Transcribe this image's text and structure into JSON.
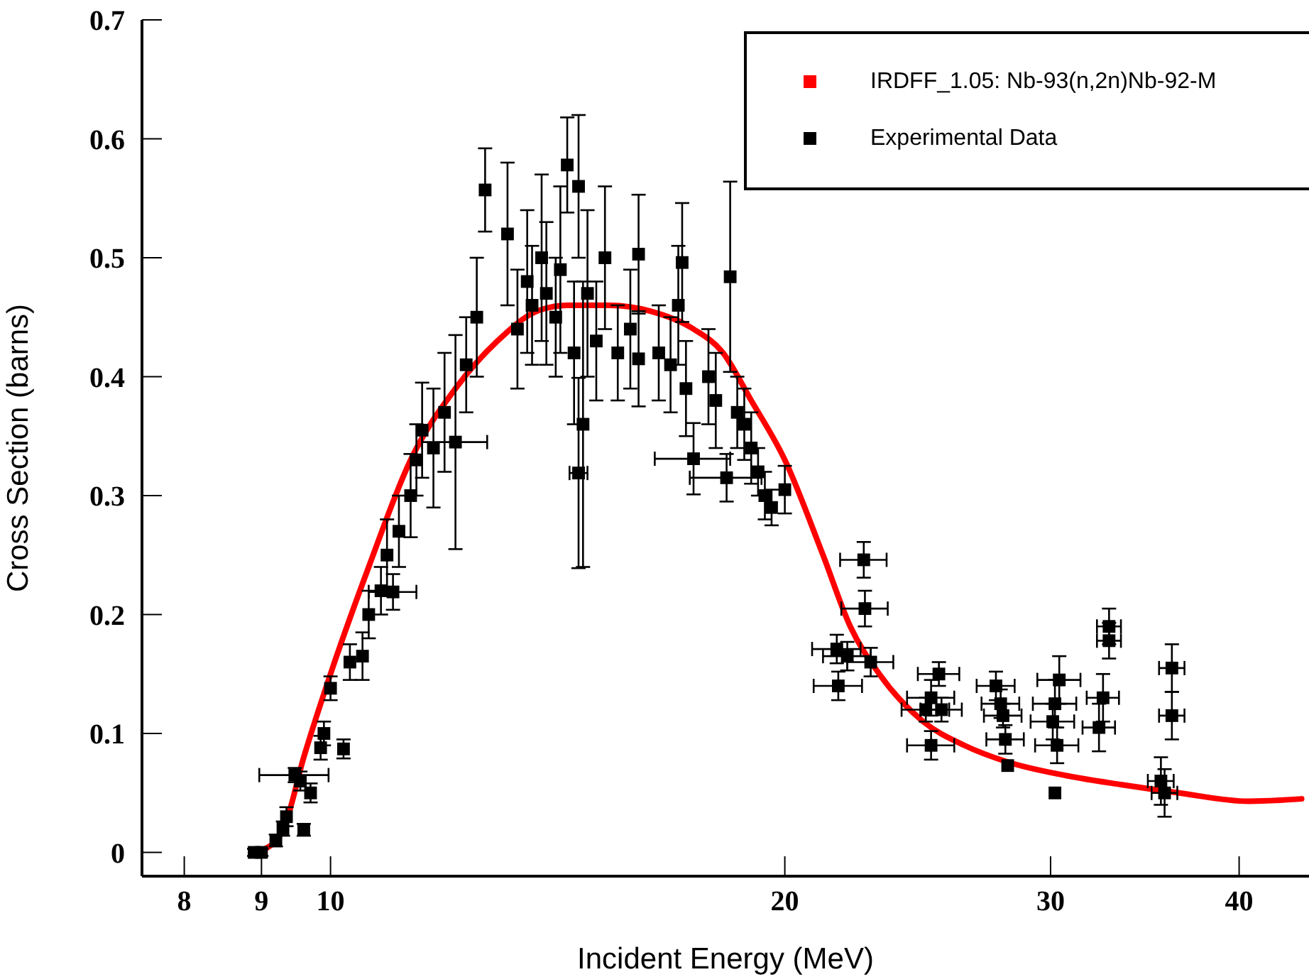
{
  "chart_data": {
    "type": "scatter",
    "xlabel": "Incident Energy (MeV)",
    "ylabel": "Cross Section (barns)",
    "log": "x",
    "xlim": [
      7.5,
      44.5
    ],
    "xticks": [
      8,
      9,
      10,
      20,
      30,
      40
    ],
    "ylim": [
      -0.02,
      0.7
    ],
    "yticks": [
      0,
      0.1,
      0.2,
      0.3,
      0.4,
      0.5,
      0.6,
      0.7
    ],
    "grid": false,
    "legend": "top right",
    "series": [
      {
        "name": "IRDFF_1.05: Nb-93(n,2n)Nb-92-M",
        "type": "line",
        "marker": "none",
        "color": "#ff0000",
        "x": [
          9.05,
          9.31,
          9.6,
          10,
          10.6,
          11.3,
          12.1,
          12.9,
          13.7,
          14.35,
          15.3,
          16.3,
          17.4,
          18.2,
          19.0,
          20.0,
          21.2,
          22.1,
          23.1,
          24.7,
          26.3,
          28.1,
          30.6,
          33.4,
          36.5,
          40.6,
          44
        ],
        "values": [
          0.003,
          0.02,
          0.08,
          0.15,
          0.24,
          0.33,
          0.39,
          0.43,
          0.455,
          0.46,
          0.46,
          0.455,
          0.44,
          0.42,
          0.38,
          0.33,
          0.25,
          0.19,
          0.15,
          0.11,
          0.09,
          0.076,
          0.065,
          0.057,
          0.05,
          0.043,
          0.045
        ]
      },
      {
        "name": "Experimental Data",
        "marker": "square",
        "color": "#000000",
        "x": [
          8.9,
          9.0,
          9.2,
          9.3,
          9.35,
          9.47,
          9.55,
          9.6,
          9.7,
          9.85,
          9.9,
          10.0,
          10.2,
          10.3,
          10.5,
          10.6,
          10.8,
          10.9,
          11.0,
          11.1,
          11.3,
          11.4,
          11.5,
          11.7,
          11.9,
          12.1,
          12.3,
          12.5,
          12.66,
          13.1,
          13.3,
          13.5,
          13.6,
          13.8,
          13.9,
          14.1,
          14.2,
          14.35,
          14.6,
          14.5,
          14.6,
          14.7,
          14.8,
          15.0,
          15.2,
          15.5,
          15.8,
          16.0,
          16.0,
          16.5,
          16.8,
          17.0,
          17.1,
          17.2,
          17.4,
          17.8,
          18.0,
          18.4,
          18.3,
          18.6,
          18.8,
          19.0,
          19.2,
          19.4,
          19.6,
          20.0,
          21.65,
          21.7,
          22.0,
          22.56,
          22.6,
          22.8,
          24.8,
          25.0,
          25.0,
          25.3,
          25.4,
          27.6,
          27.8,
          27.9,
          28.0,
          28.1,
          30.1,
          30.2,
          30.4,
          30.3,
          30.2,
          32.5,
          32.3,
          32.8,
          32.8,
          35.5,
          35.7,
          36.1,
          36.1
        ],
        "values": [
          0.0,
          0.0,
          0.01,
          0.02,
          0.03,
          0.065,
          0.06,
          0.019,
          0.05,
          0.088,
          0.1,
          0.138,
          0.087,
          0.16,
          0.165,
          0.2,
          0.22,
          0.25,
          0.219,
          0.27,
          0.3,
          0.33,
          0.355,
          0.34,
          0.37,
          0.345,
          0.41,
          0.45,
          0.557,
          0.52,
          0.44,
          0.48,
          0.46,
          0.5,
          0.47,
          0.45,
          0.49,
          0.578,
          0.56,
          0.42,
          0.319,
          0.36,
          0.47,
          0.43,
          0.5,
          0.42,
          0.44,
          0.415,
          0.503,
          0.42,
          0.41,
          0.46,
          0.496,
          0.39,
          0.331,
          0.4,
          0.38,
          0.484,
          0.315,
          0.37,
          0.36,
          0.34,
          0.32,
          0.3,
          0.29,
          0.305,
          0.171,
          0.14,
          0.165,
          0.246,
          0.205,
          0.16,
          0.12,
          0.13,
          0.09,
          0.15,
          0.12,
          0.14,
          0.125,
          0.115,
          0.095,
          0.073,
          0.11,
          0.125,
          0.145,
          0.09,
          0.05,
          0.13,
          0.105,
          0.19,
          0.178,
          0.06,
          0.05,
          0.155,
          0.115
        ],
        "errors": [
          0.003,
          0.003,
          0.005,
          0.006,
          0.008,
          0.006,
          0.008,
          0.005,
          0.008,
          0.01,
          0.01,
          0.01,
          0.008,
          0.015,
          0.02,
          0.02,
          0.02,
          0.03,
          0.015,
          0.03,
          0.035,
          0.03,
          0.04,
          0.05,
          0.05,
          0.09,
          0.04,
          0.05,
          0.035,
          0.06,
          0.05,
          0.06,
          0.05,
          0.07,
          0.06,
          0.05,
          0.07,
          0.04,
          0.06,
          0.06,
          0.08,
          0.12,
          0.07,
          0.05,
          0.06,
          0.04,
          0.05,
          0.04,
          0.05,
          0.04,
          0.04,
          0.05,
          0.05,
          0.04,
          0.03,
          0.04,
          0.04,
          0.08,
          0.02,
          0.03,
          0.03,
          0.03,
          0.02,
          0.02,
          0.015,
          0.02,
          0.012,
          0.012,
          0.012,
          0.015,
          0.015,
          0.012,
          0.01,
          0.015,
          0.012,
          0.01,
          0.01,
          0.012,
          0.012,
          0.01,
          0.012,
          null,
          0.015,
          0.02,
          0.02,
          0.015,
          null,
          0.02,
          0.02,
          0.015,
          0.015,
          0.02,
          0.02,
          0.02,
          0.02
        ],
        "xerrors": [
          null,
          null,
          null,
          null,
          null,
          0.5,
          null,
          null,
          null,
          null,
          null,
          null,
          null,
          null,
          null,
          null,
          null,
          null,
          0.4,
          null,
          null,
          null,
          null,
          null,
          null,
          0.6,
          null,
          null,
          null,
          null,
          null,
          null,
          null,
          null,
          null,
          null,
          null,
          null,
          null,
          null,
          0.2,
          null,
          null,
          null,
          null,
          null,
          null,
          null,
          null,
          null,
          null,
          null,
          null,
          null,
          1.0,
          null,
          null,
          null,
          1.0,
          null,
          null,
          null,
          null,
          null,
          null,
          null,
          0.8,
          0.8,
          0.8,
          0.8,
          0.8,
          0.8,
          0.9,
          0.9,
          0.9,
          0.8,
          0.8,
          0.8,
          0.8,
          0.8,
          0.8,
          null,
          1.0,
          1.0,
          1.0,
          1.0,
          null,
          0.8,
          0.8,
          0.6,
          0.6,
          0.7,
          0.7,
          0.7,
          0.7
        ]
      }
    ]
  }
}
